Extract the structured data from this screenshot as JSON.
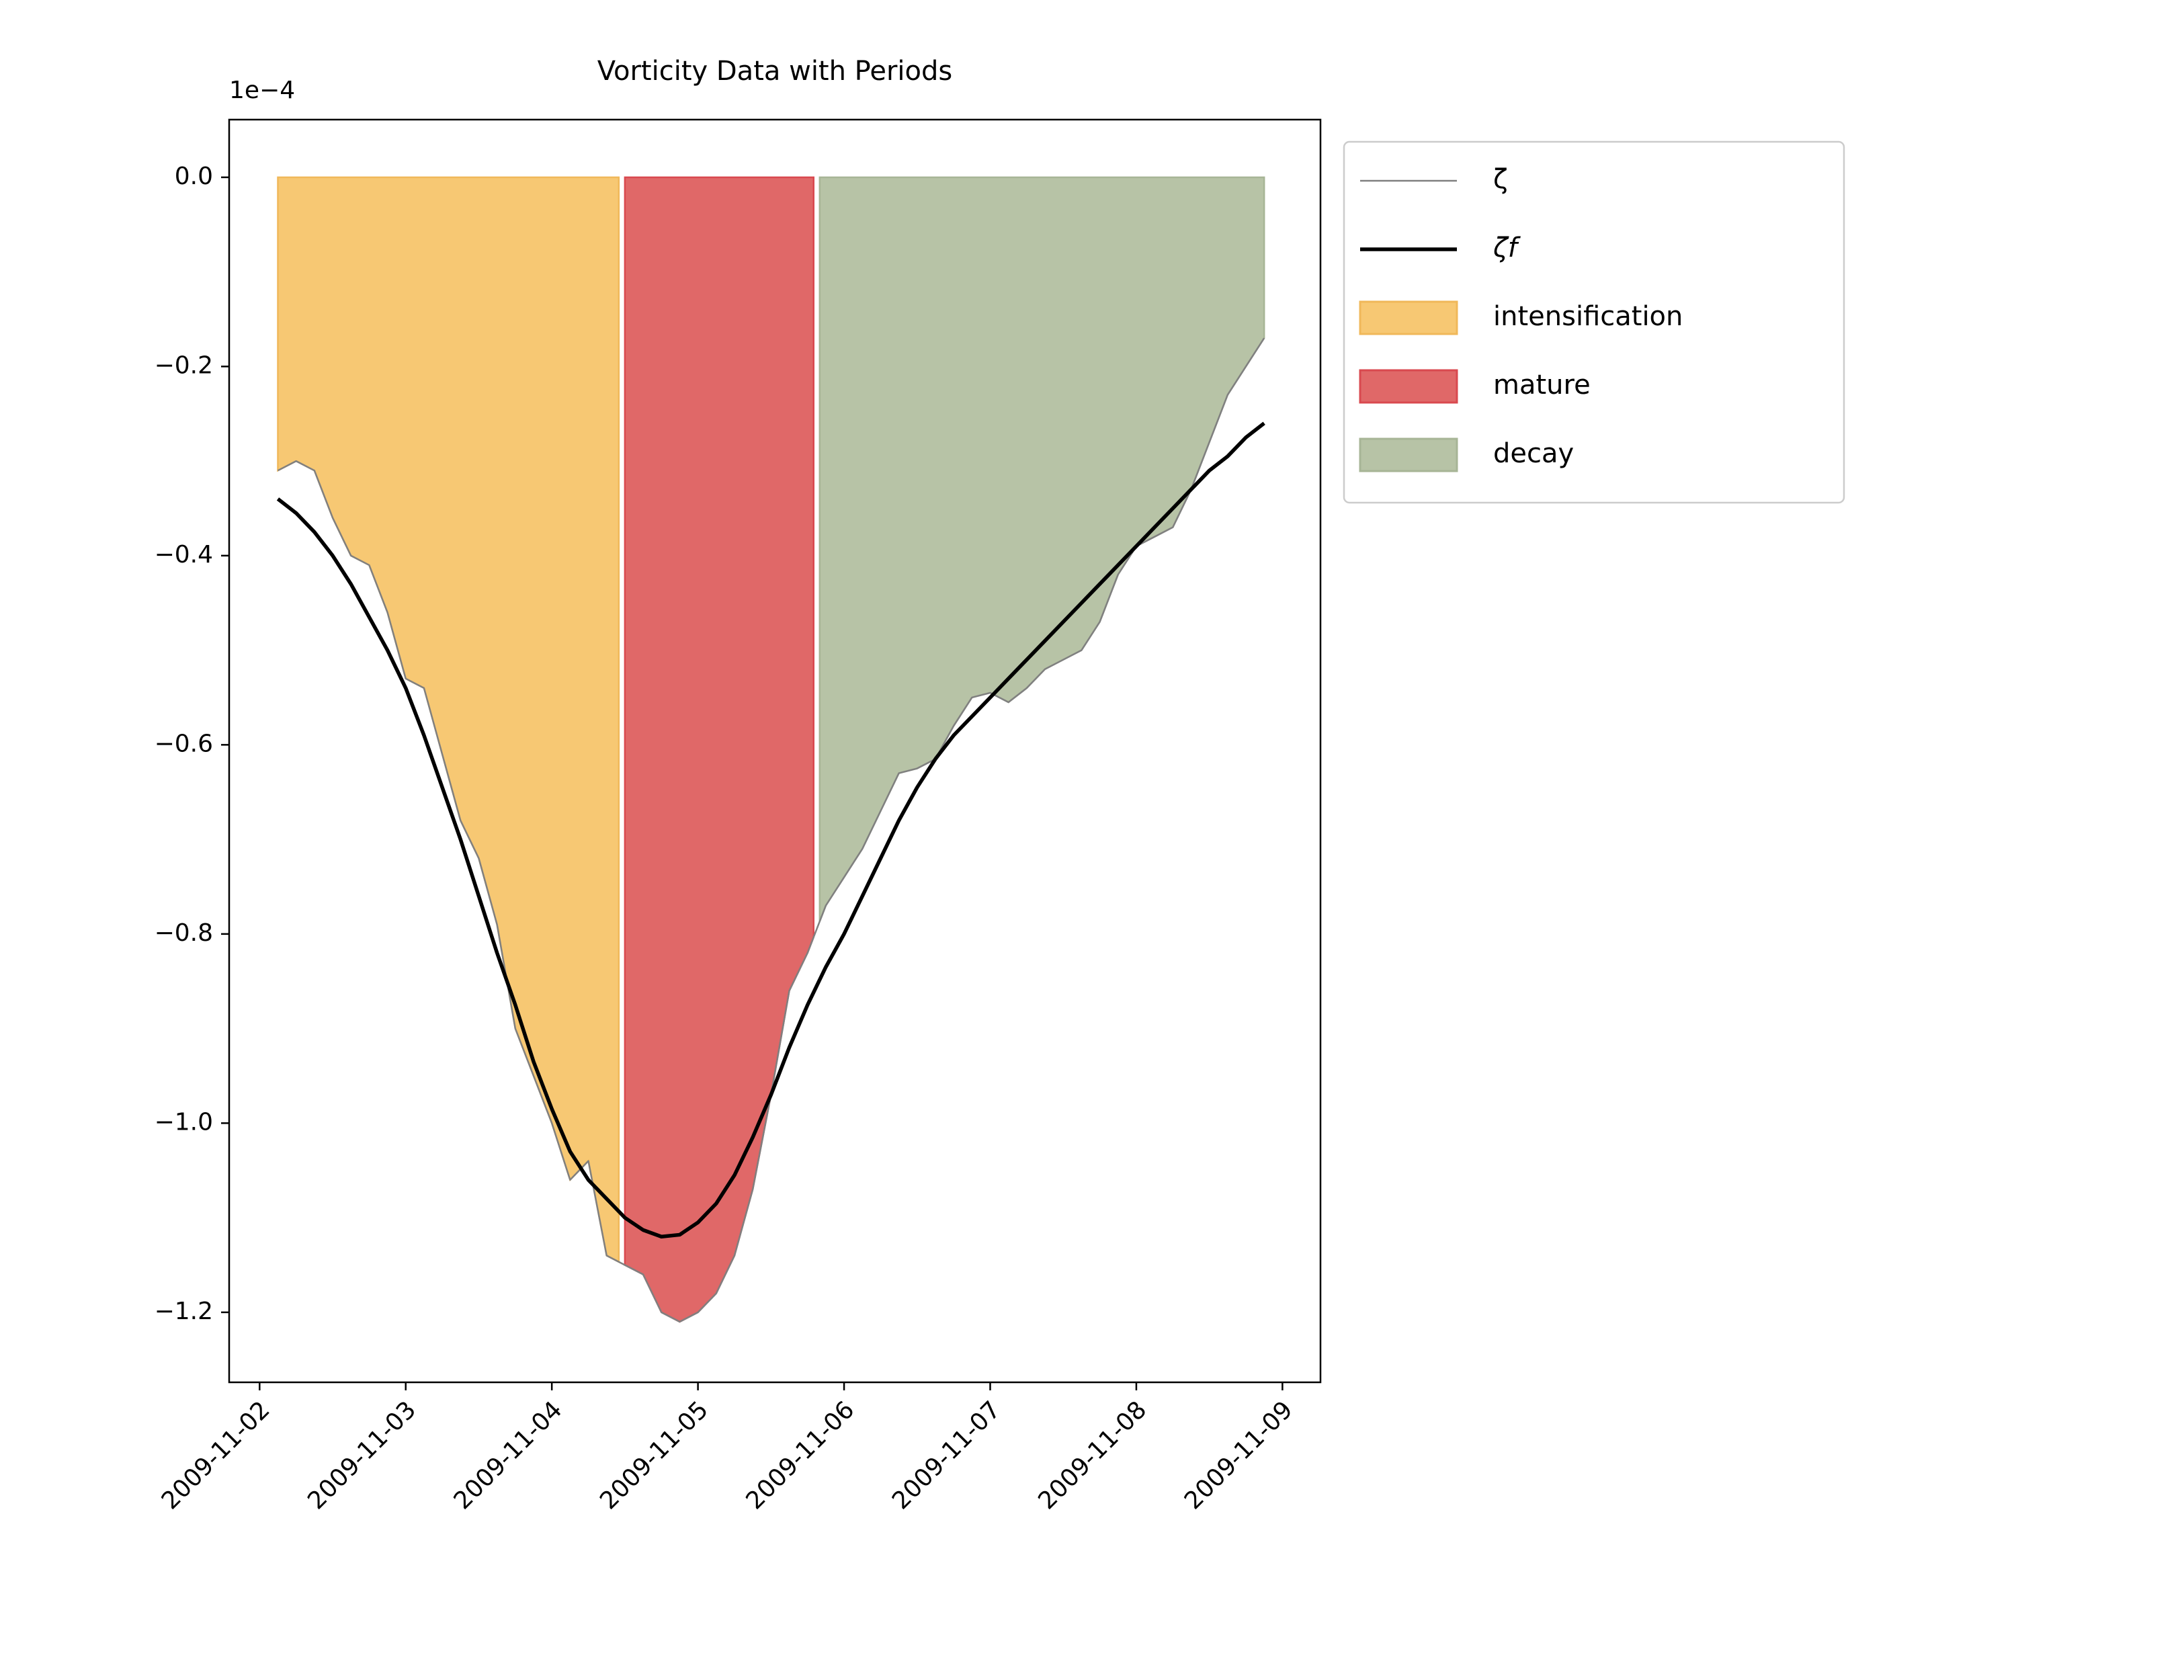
{
  "chart_data": {
    "type": "line",
    "title": "Vorticity Data with Periods",
    "y_offset_label": "1e−4",
    "x": [
      "2009-11-02T03:00",
      "2009-11-02T06:00",
      "2009-11-02T09:00",
      "2009-11-02T12:00",
      "2009-11-02T15:00",
      "2009-11-02T18:00",
      "2009-11-02T21:00",
      "2009-11-03T00:00",
      "2009-11-03T03:00",
      "2009-11-03T06:00",
      "2009-11-03T09:00",
      "2009-11-03T12:00",
      "2009-11-03T15:00",
      "2009-11-03T18:00",
      "2009-11-03T21:00",
      "2009-11-04T00:00",
      "2009-11-04T03:00",
      "2009-11-04T06:00",
      "2009-11-04T09:00",
      "2009-11-04T12:00",
      "2009-11-04T15:00",
      "2009-11-04T18:00",
      "2009-11-04T21:00",
      "2009-11-05T00:00",
      "2009-11-05T03:00",
      "2009-11-05T06:00",
      "2009-11-05T09:00",
      "2009-11-05T12:00",
      "2009-11-05T15:00",
      "2009-11-05T18:00",
      "2009-11-05T21:00",
      "2009-11-06T00:00",
      "2009-11-06T03:00",
      "2009-11-06T06:00",
      "2009-11-06T09:00",
      "2009-11-06T12:00",
      "2009-11-06T15:00",
      "2009-11-06T18:00",
      "2009-11-06T21:00",
      "2009-11-07T00:00",
      "2009-11-07T03:00",
      "2009-11-07T06:00",
      "2009-11-07T09:00",
      "2009-11-07T12:00",
      "2009-11-07T15:00",
      "2009-11-07T18:00",
      "2009-11-07T21:00",
      "2009-11-08T00:00",
      "2009-11-08T03:00",
      "2009-11-08T06:00",
      "2009-11-08T09:00",
      "2009-11-08T12:00",
      "2009-11-08T15:00",
      "2009-11-08T18:00",
      "2009-11-08T21:00"
    ],
    "series": [
      {
        "name": "ζ",
        "color": "#808080",
        "width": 2.5,
        "values": [
          -0.31,
          -0.3,
          -0.31,
          -0.36,
          -0.4,
          -0.41,
          -0.46,
          -0.53,
          -0.54,
          -0.61,
          -0.68,
          -0.72,
          -0.79,
          -0.9,
          -0.95,
          -1.0,
          -1.06,
          -1.04,
          -1.14,
          -1.15,
          -1.16,
          -1.2,
          -1.21,
          -1.2,
          -1.18,
          -1.14,
          -1.07,
          -0.97,
          -0.86,
          -0.82,
          -0.77,
          -0.74,
          -0.71,
          -0.67,
          -0.63,
          -0.625,
          -0.615,
          -0.58,
          -0.55,
          -0.545,
          -0.555,
          -0.54,
          -0.52,
          -0.51,
          -0.5,
          -0.47,
          -0.42,
          -0.39,
          -0.38,
          -0.37,
          -0.33,
          -0.28,
          -0.23,
          -0.2,
          -0.17
        ]
      },
      {
        "name": "ζf",
        "color": "#000000",
        "width": 5.5,
        "values": [
          -0.34,
          -0.355,
          -0.375,
          -0.4,
          -0.43,
          -0.465,
          -0.5,
          -0.54,
          -0.59,
          -0.645,
          -0.7,
          -0.76,
          -0.82,
          -0.875,
          -0.935,
          -0.985,
          -1.03,
          -1.06,
          -1.08,
          -1.1,
          -1.113,
          -1.12,
          -1.118,
          -1.105,
          -1.085,
          -1.055,
          -1.015,
          -0.97,
          -0.92,
          -0.875,
          -0.835,
          -0.8,
          -0.76,
          -0.72,
          -0.68,
          -0.645,
          -0.615,
          -0.59,
          -0.57,
          -0.55,
          -0.53,
          -0.51,
          -0.49,
          -0.47,
          -0.45,
          -0.43,
          -0.41,
          -0.39,
          -0.37,
          -0.35,
          -0.33,
          -0.31,
          -0.295,
          -0.275,
          -0.26
        ]
      }
    ],
    "periods": [
      {
        "name": "intensification",
        "color": "#f7c873",
        "edge": "#f0b85a",
        "start": "2009-11-02T03:00",
        "end": "2009-11-04T11:00"
      },
      {
        "name": "mature",
        "color": "#e06868",
        "edge": "#d9494f",
        "start": "2009-11-04T12:00",
        "end": "2009-11-05T19:00"
      },
      {
        "name": "decay",
        "color": "#b7c3a6",
        "edge": "#a7b596",
        "start": "2009-11-05T20:00",
        "end": "2009-11-08T21:00"
      }
    ],
    "xlim": [
      "2009-11-01T19:00",
      "2009-11-09T06:15"
    ],
    "xticks": [
      "2009-11-02",
      "2009-11-03",
      "2009-11-04",
      "2009-11-05",
      "2009-11-06",
      "2009-11-07",
      "2009-11-08",
      "2009-11-09"
    ],
    "ylim": [
      -1.274,
      0.061
    ],
    "yticks": [
      {
        "value": 0.0,
        "label": "0.0"
      },
      {
        "value": -0.2,
        "label": "−0.2"
      },
      {
        "value": -0.4,
        "label": "−0.4"
      },
      {
        "value": -0.6,
        "label": "−0.6"
      },
      {
        "value": -0.8,
        "label": "−0.8"
      },
      {
        "value": -1.0,
        "label": "−1.0"
      },
      {
        "value": -1.2,
        "label": "−1.2"
      }
    ],
    "grid": false
  }
}
